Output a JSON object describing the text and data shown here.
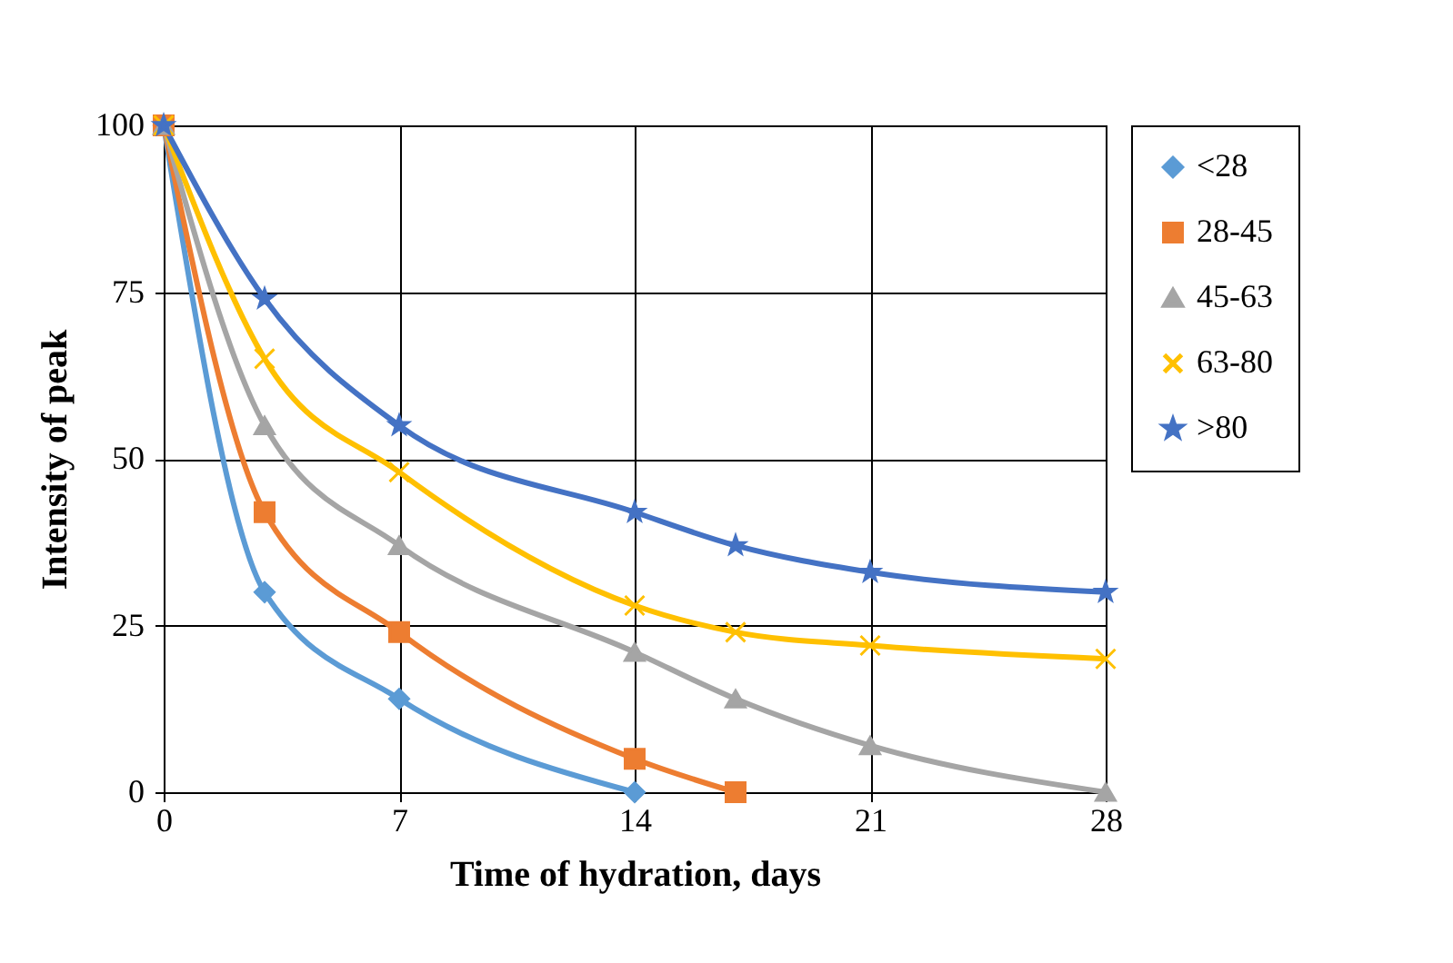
{
  "chart_data": {
    "type": "line",
    "xlabel": "Time of hydration, days",
    "ylabel": "Intensity of peak",
    "xlim": [
      0,
      28
    ],
    "xticks": [
      0,
      7,
      14,
      21,
      28
    ],
    "ylim": [
      0,
      100
    ],
    "yticks": [
      0,
      25,
      50,
      75,
      100
    ],
    "grid": true,
    "legend": "right",
    "line_style": "solid",
    "series": [
      {
        "name": "<28",
        "color": "#5b9bd5",
        "marker": "diamond",
        "x": [
          0,
          3,
          7,
          14
        ],
        "values": [
          100,
          30,
          14,
          0
        ]
      },
      {
        "name": "28-45",
        "color": "#ed7d31",
        "marker": "square",
        "x": [
          0,
          3,
          7,
          14,
          17
        ],
        "values": [
          100,
          42,
          24,
          5,
          0
        ]
      },
      {
        "name": "45-63",
        "color": "#a5a5a5",
        "marker": "triangle",
        "x": [
          0,
          3,
          7,
          14,
          17,
          21,
          28
        ],
        "values": [
          100,
          55,
          37,
          21,
          14,
          7,
          0
        ]
      },
      {
        "name": "63-80",
        "color": "#ffc000",
        "marker": "cross",
        "x": [
          0,
          3,
          7,
          14,
          17,
          21,
          28
        ],
        "values": [
          100,
          65,
          48,
          28,
          24,
          22,
          20
        ]
      },
      {
        "name": ">80",
        "color": "#4472c4",
        "marker": "star",
        "x": [
          0,
          3,
          7,
          14,
          17,
          21,
          28
        ],
        "values": [
          100,
          74,
          55,
          42,
          37,
          33,
          30
        ]
      }
    ]
  }
}
